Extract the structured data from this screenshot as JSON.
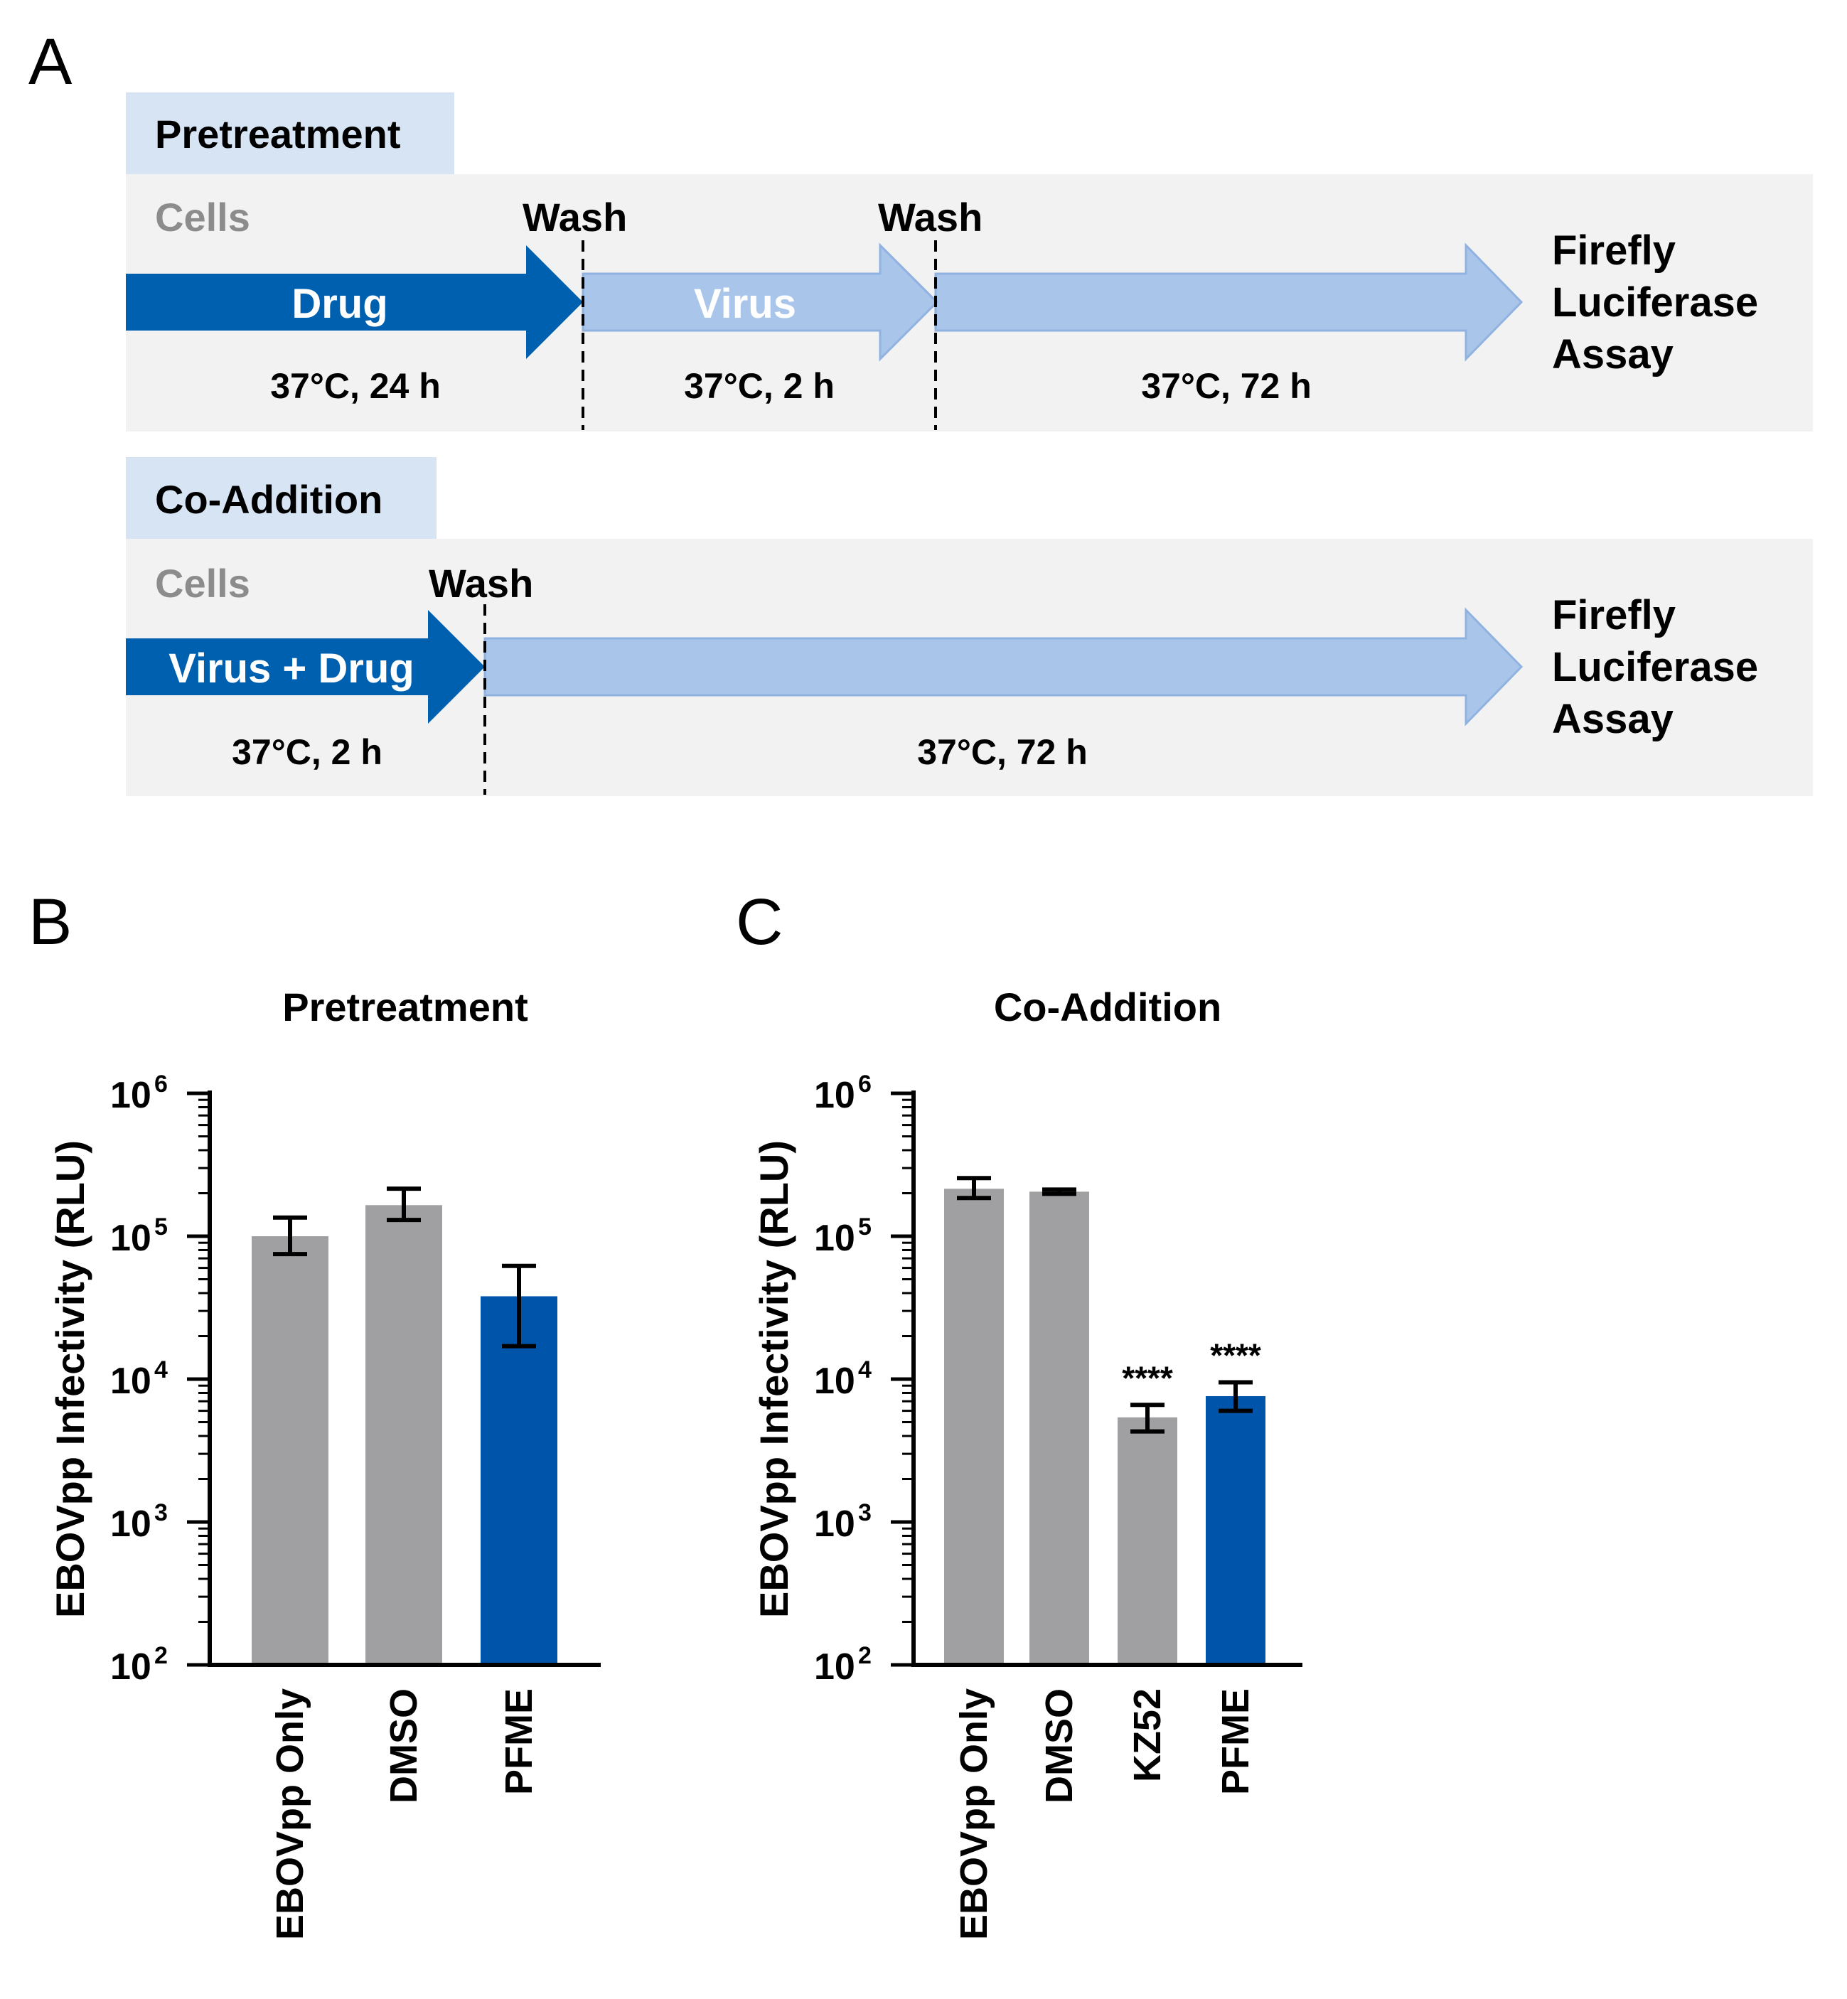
{
  "panels": {
    "a": "A",
    "b": "B",
    "c": "C"
  },
  "colors": {
    "dark_blue": "#0060b0",
    "light_blue": "#a9c6ea",
    "header_bg": "#d6e4f4",
    "panel_bg": "#f2f2f2",
    "gray_bar": "#a0a0a2",
    "blue_bar": "#0055aa"
  },
  "protocol": {
    "pretreatment": {
      "title": "Pretreatment",
      "cells": "Cells",
      "wash1": "Wash",
      "wash2": "Wash",
      "drug": "Drug",
      "virus": "Virus",
      "cond1": "37°C, 24 h",
      "cond2": "37°C, 2 h",
      "cond3": "37°C, 72 h",
      "assay": [
        "Firefly",
        "Luciferase",
        "Assay"
      ]
    },
    "coaddition": {
      "title": "Co-Addition",
      "cells": "Cells",
      "wash": "Wash",
      "mix": "Virus + Drug",
      "cond1": "37°C, 2 h",
      "cond2": "37°C, 72 h",
      "assay": [
        "Firefly",
        "Luciferase",
        "Assay"
      ]
    }
  },
  "chart_data": [
    {
      "id": "B",
      "type": "bar",
      "title": "Pretreatment",
      "ylabel": "EBOVpp Infectivity (RLU)",
      "yscale": "log",
      "ylim": [
        100,
        1000000
      ],
      "ytick_base": "10",
      "ytick_exponents": [
        "2",
        "3",
        "4",
        "5",
        "6"
      ],
      "categories": [
        "EBOVpp Only",
        "DMSO",
        "PFME"
      ],
      "values": [
        100000,
        165000,
        38000
      ],
      "err_low": [
        75000,
        130000,
        17000
      ],
      "err_high": [
        135000,
        215000,
        62000
      ],
      "bar_colors": [
        "#a0a0a2",
        "#a0a0a2",
        "#0055aa"
      ],
      "annotations": [
        "",
        "",
        ""
      ]
    },
    {
      "id": "C",
      "type": "bar",
      "title": "Co-Addition",
      "ylabel": "EBOVpp Infectivity (RLU)",
      "yscale": "log",
      "ylim": [
        100,
        1000000
      ],
      "ytick_base": "10",
      "ytick_exponents": [
        "2",
        "3",
        "4",
        "5",
        "6"
      ],
      "categories": [
        "EBOVpp Only",
        "DMSO",
        "KZ52",
        "PFME"
      ],
      "values": [
        215000,
        205000,
        5400,
        7600
      ],
      "err_low": [
        185000,
        198000,
        4300,
        6000
      ],
      "err_high": [
        255000,
        212000,
        6600,
        9500
      ],
      "bar_colors": [
        "#a0a0a2",
        "#a0a0a2",
        "#a0a0a2",
        "#0055aa"
      ],
      "annotations": [
        "",
        "",
        "****",
        "****"
      ]
    }
  ]
}
